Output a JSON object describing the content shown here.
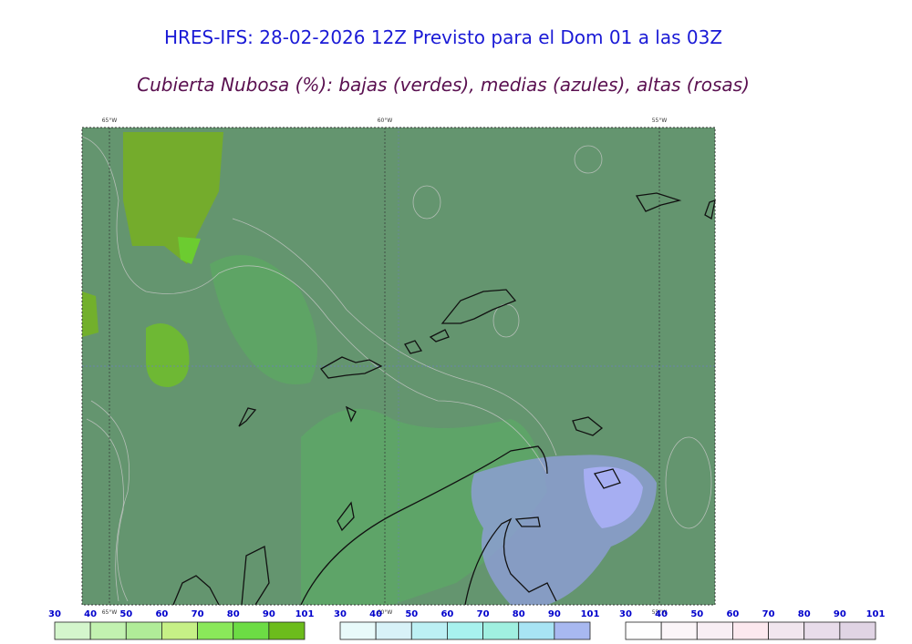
{
  "header": {
    "title": "HRES-IFS: 28-02-2026 12Z Previsto para el Dom 01 a las 03Z",
    "subtitle": "Cubierta Nubosa (%): bajas (verdes), medias (azules), altas (rosas)"
  },
  "map": {
    "longitudes": [
      "65°W",
      "60°W",
      "55°W"
    ]
  },
  "colorbars": [
    {
      "ticks": [
        30,
        40,
        50,
        60,
        70,
        80,
        90,
        101
      ],
      "colors": [
        "#d4f6cc",
        "#c2f2b0",
        "#b0ec98",
        "#c6f086",
        "#8ae85a",
        "#6cdc44",
        "#6cbc1c"
      ]
    },
    {
      "ticks": [
        30,
        40,
        50,
        60,
        70,
        80,
        90,
        101
      ],
      "colors": [
        "#e8fafa",
        "#d8f2f8",
        "#bcf0f4",
        "#a8f2ee",
        "#a0f0e0",
        "#a8e4f4",
        "#a8b8f0"
      ]
    },
    {
      "ticks": [
        30,
        40,
        50,
        60,
        70,
        80,
        90,
        101
      ],
      "colors": [
        "#fefefe",
        "#fbf5f8",
        "#f8eef4",
        "#fce8ee",
        "#f1e6ee",
        "#e8dcea",
        "#e0d4e4"
      ]
    }
  ]
}
